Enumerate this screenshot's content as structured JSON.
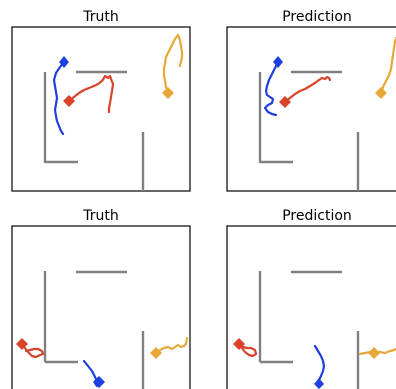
{
  "panels": [
    {
      "title": "Truth"
    },
    {
      "title": "Prediction"
    },
    {
      "title": "Truth"
    },
    {
      "title": "Prediction"
    }
  ],
  "colors": {
    "blue": "#1f3fe0",
    "red": "#d8432a",
    "orange": "#e8a838",
    "wall": "#808080",
    "frame": "#000000"
  },
  "agents": [
    "blue",
    "red",
    "orange"
  ]
}
